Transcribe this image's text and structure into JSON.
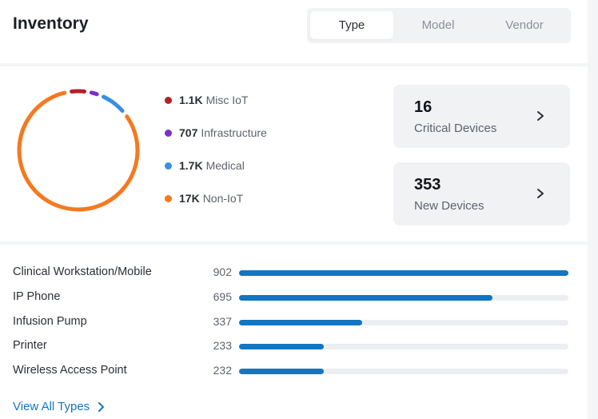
{
  "header": {
    "title": "Inventory",
    "tabs": [
      {
        "label": "Type",
        "active": true
      },
      {
        "label": "Model",
        "active": false
      },
      {
        "label": "Vendor",
        "active": false
      }
    ]
  },
  "legend": [
    {
      "value": "1.1K",
      "label": "Misc IoT",
      "color": "#b3202a"
    },
    {
      "value": "707",
      "label": "Infrastructure",
      "color": "#7a2fcf"
    },
    {
      "value": "1.7K",
      "label": "Medical",
      "color": "#3a8ee6"
    },
    {
      "value": "17K",
      "label": "Non-IoT",
      "color": "#f5791f"
    }
  ],
  "stats": [
    {
      "value": "16",
      "label": "Critical Devices"
    },
    {
      "value": "353",
      "label": "New Devices"
    }
  ],
  "types": [
    {
      "label": "Clinical Workstation/Mobile",
      "count": 902
    },
    {
      "label": "IP Phone",
      "count": 695
    },
    {
      "label": "Infusion Pump",
      "count": 337
    },
    {
      "label": "Printer",
      "count": 233
    },
    {
      "label": "Wireless Access Point",
      "count": 232
    }
  ],
  "footer": {
    "link_label": "View All Types"
  },
  "chart_data": {
    "type": "pie",
    "style": "donut",
    "categories": [
      "Misc IoT",
      "Infrastructure",
      "Medical",
      "Non-IoT"
    ],
    "values": [
      1100,
      707,
      1700,
      17000
    ],
    "colors": [
      "#b3202a",
      "#7a2fcf",
      "#3a8ee6",
      "#f5791f"
    ]
  }
}
